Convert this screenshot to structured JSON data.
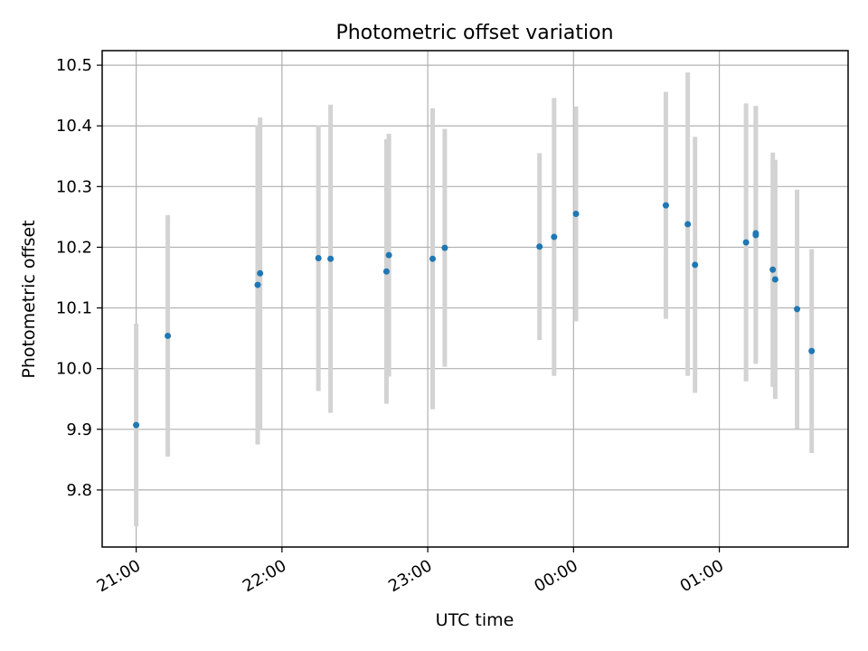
{
  "chart_data": {
    "type": "scatter",
    "title": "Photometric offset variation",
    "xlabel": "UTC time",
    "ylabel": "Photometric offset",
    "grid": true,
    "x_tick_labels": [
      "21:00",
      "22:00",
      "23:00",
      "00:00",
      "01:00"
    ],
    "y_tick_labels": [
      "9.8",
      "9.9",
      "10.0",
      "10.1",
      "10.2",
      "10.3",
      "10.4",
      "10.5"
    ],
    "xlim": [
      "2000-01-01T20:46",
      "2000-01-02T01:53"
    ],
    "ylim": [
      9.706,
      10.524
    ],
    "colors": {
      "points": "#1f77b4",
      "errorbars": "#d3d3d3",
      "grid": "#b0b0b0"
    },
    "points": [
      {
        "x": "2000-01-01T21:00",
        "y": 9.907,
        "err": 0.167
      },
      {
        "x": "2000-01-01T21:13",
        "y": 10.054,
        "err": 0.199
      },
      {
        "x": "2000-01-01T21:50",
        "y": 10.138,
        "err": 0.263
      },
      {
        "x": "2000-01-01T21:51",
        "y": 10.157,
        "err": 0.257
      },
      {
        "x": "2000-01-01T22:15",
        "y": 10.182,
        "err": 0.219
      },
      {
        "x": "2000-01-01T22:20",
        "y": 10.181,
        "err": 0.254
      },
      {
        "x": "2000-01-01T22:43",
        "y": 10.16,
        "err": 0.218
      },
      {
        "x": "2000-01-01T22:44",
        "y": 10.187,
        "err": 0.2
      },
      {
        "x": "2000-01-01T23:02",
        "y": 10.181,
        "err": 0.248
      },
      {
        "x": "2000-01-01T23:07",
        "y": 10.199,
        "err": 0.196
      },
      {
        "x": "2000-01-01T23:46",
        "y": 10.201,
        "err": 0.154
      },
      {
        "x": "2000-01-01T23:52",
        "y": 10.217,
        "err": 0.229
      },
      {
        "x": "2000-01-02T00:01",
        "y": 10.255,
        "err": 0.177
      },
      {
        "x": "2000-01-02T00:38",
        "y": 10.269,
        "err": 0.187
      },
      {
        "x": "2000-01-02T00:47",
        "y": 10.238,
        "err": 0.25
      },
      {
        "x": "2000-01-02T00:50",
        "y": 10.171,
        "err": 0.211
      },
      {
        "x": "2000-01-02T01:11",
        "y": 10.208,
        "err": 0.229
      },
      {
        "x": "2000-01-02T01:15",
        "y": 10.223,
        "err": 0.21
      },
      {
        "x": "2000-01-02T01:15",
        "y": 10.22,
        "err": 0.212
      },
      {
        "x": "2000-01-02T01:22",
        "y": 10.163,
        "err": 0.193
      },
      {
        "x": "2000-01-02T01:23",
        "y": 10.147,
        "err": 0.197
      },
      {
        "x": "2000-01-02T01:32",
        "y": 10.098,
        "err": 0.197
      },
      {
        "x": "2000-01-02T01:38",
        "y": 10.029,
        "err": 0.168
      }
    ]
  }
}
